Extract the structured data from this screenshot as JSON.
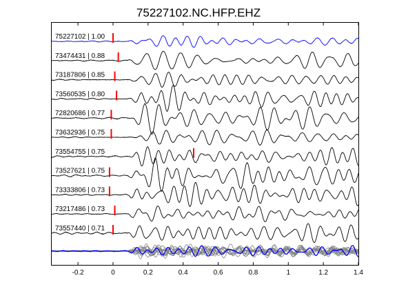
{
  "chart_data": {
    "type": "line",
    "title": "75227102.NC.HFP.EHZ",
    "xlabel": "",
    "ylabel": "",
    "xlim": [
      -0.35,
      1.4
    ],
    "xticks": [
      -0.2,
      0,
      0.2,
      0.4,
      0.6,
      0.8,
      1,
      1.2,
      1.4
    ],
    "xtick_labels": [
      "-0.2",
      "0",
      "0.2",
      "0.4",
      "0.6",
      "0.8",
      "1",
      "1.2",
      "1.4"
    ],
    "grid": false,
    "legend": "none",
    "colors": {
      "reference": "#0000ff",
      "trace": "#000000",
      "pick": "#ff0000",
      "stack": "#808080"
    },
    "series": [
      {
        "name": "75227102",
        "label": "75227102 | 1.00",
        "event_id": "75227102",
        "cc": 1.0,
        "pick_time": 0.0,
        "color": "#0000ff",
        "amplitude": 0.35
      },
      {
        "name": "73474431",
        "label": "73474431 | 0.88",
        "event_id": "73474431",
        "cc": 0.88,
        "pick_time": 0.03,
        "color": "#000000",
        "amplitude": 0.55
      },
      {
        "name": "73187806",
        "label": "73187806 | 0.85",
        "event_id": "73187806",
        "cc": 0.85,
        "pick_time": 0.01,
        "color": "#000000",
        "amplitude": 0.55
      },
      {
        "name": "73560535",
        "label": "73560535 | 0.80",
        "event_id": "73560535",
        "cc": 0.8,
        "pick_time": 0.02,
        "color": "#000000",
        "amplitude": 0.55
      },
      {
        "name": "72820686",
        "label": "72820686 | 0.77",
        "event_id": "72820686",
        "cc": 0.77,
        "pick_time": -0.01,
        "color": "#000000",
        "amplitude": 0.55
      },
      {
        "name": "73632936",
        "label": "73632936 | 0.75",
        "event_id": "73632936",
        "cc": 0.75,
        "pick_time": -0.01,
        "color": "#000000",
        "amplitude": 0.55
      },
      {
        "name": "73554755",
        "label": "73554755 | 0.75",
        "event_id": "73554755",
        "cc": 0.75,
        "pick_time": 0.46,
        "color": "#000000",
        "amplitude": 0.62
      },
      {
        "name": "73527621",
        "label": "73527621 | 0.75",
        "event_id": "73527621",
        "cc": 0.75,
        "pick_time": -0.02,
        "color": "#000000",
        "amplitude": 0.6
      },
      {
        "name": "73333806",
        "label": "73333806 | 0.73",
        "event_id": "73333806",
        "cc": 0.73,
        "pick_time": -0.02,
        "color": "#000000",
        "amplitude": 0.6
      },
      {
        "name": "73217486",
        "label": "73217486 | 0.73",
        "event_id": "73217486",
        "cc": 0.73,
        "pick_time": 0.01,
        "color": "#000000",
        "amplitude": 0.55
      },
      {
        "name": "73557440",
        "label": "73557440 | 0.71",
        "event_id": "73557440",
        "cc": 0.71,
        "pick_time": 0.0,
        "color": "#000000",
        "amplitude": 0.5
      }
    ],
    "stack": {
      "overlay_count": 11,
      "color": "#808080",
      "reference_color": "#0000ff"
    }
  }
}
